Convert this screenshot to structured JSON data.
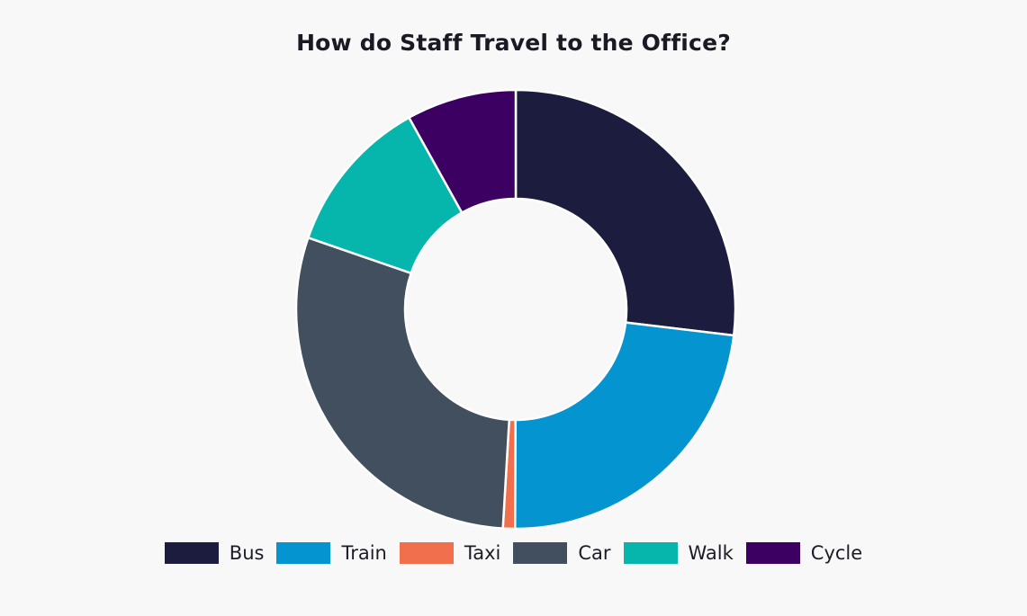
{
  "chart_data": {
    "type": "pie",
    "variant": "donut",
    "title": "How do Staff Travel to the Office?",
    "categories": [
      "Bus",
      "Train",
      "Taxi",
      "Car",
      "Walk",
      "Cycle"
    ],
    "values": [
      27.3,
      23.5,
      0.9,
      29.8,
      11.8,
      8.2
    ],
    "colors": [
      "#1c1c3f",
      "#0494cf",
      "#f26f4d",
      "#424f5e",
      "#06b6ac",
      "#3b0062"
    ],
    "legend_position": "bottom",
    "start_angle": "top",
    "direction": "clockwise"
  }
}
